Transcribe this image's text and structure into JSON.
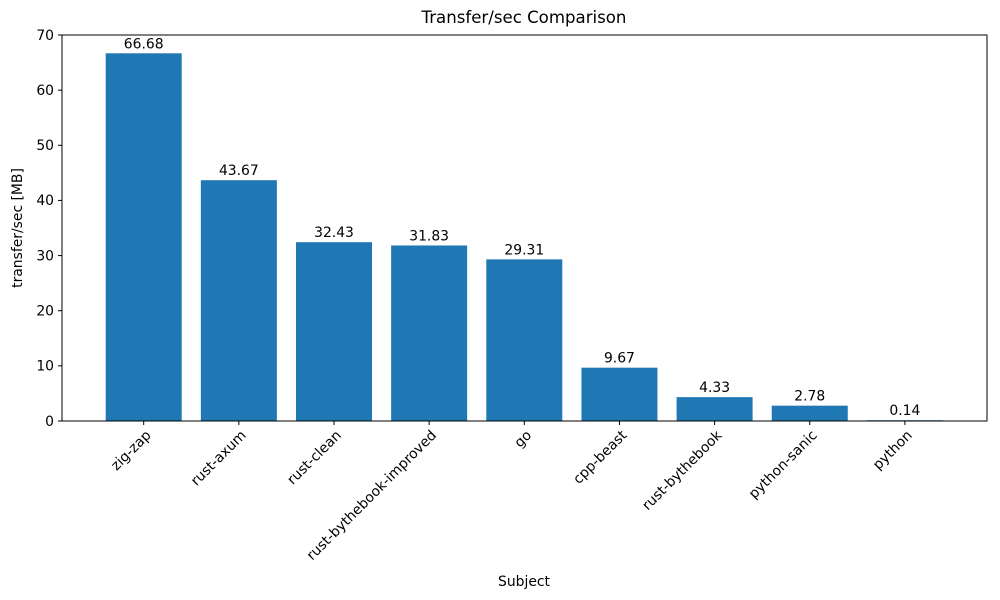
{
  "figure": {
    "background_color": "#ffffff",
    "axes_box": true
  },
  "chart_data": {
    "type": "bar",
    "title": "Transfer/sec Comparison",
    "xlabel": "Subject",
    "ylabel": "transfer/sec [MB]",
    "categories": [
      "zig-zap",
      "rust-axum",
      "rust-clean",
      "rust-bythebook-improved",
      "go",
      "cpp-beast",
      "rust-bythebook",
      "python-sanic",
      "python"
    ],
    "values": [
      66.68,
      43.67,
      32.43,
      31.83,
      29.31,
      9.67,
      4.33,
      2.78,
      0.14
    ],
    "value_labels": [
      "66.68",
      "43.67",
      "32.43",
      "31.83",
      "29.31",
      "9.67",
      "4.33",
      "2.78",
      "0.14"
    ],
    "ylim": [
      0,
      70
    ],
    "yticks": [
      0,
      10,
      20,
      30,
      40,
      50,
      60,
      70
    ],
    "bar_color": "#1f77b4",
    "axis_color": "#000000",
    "grid": false,
    "legend": null,
    "x_tick_rotation_deg": 45
  }
}
